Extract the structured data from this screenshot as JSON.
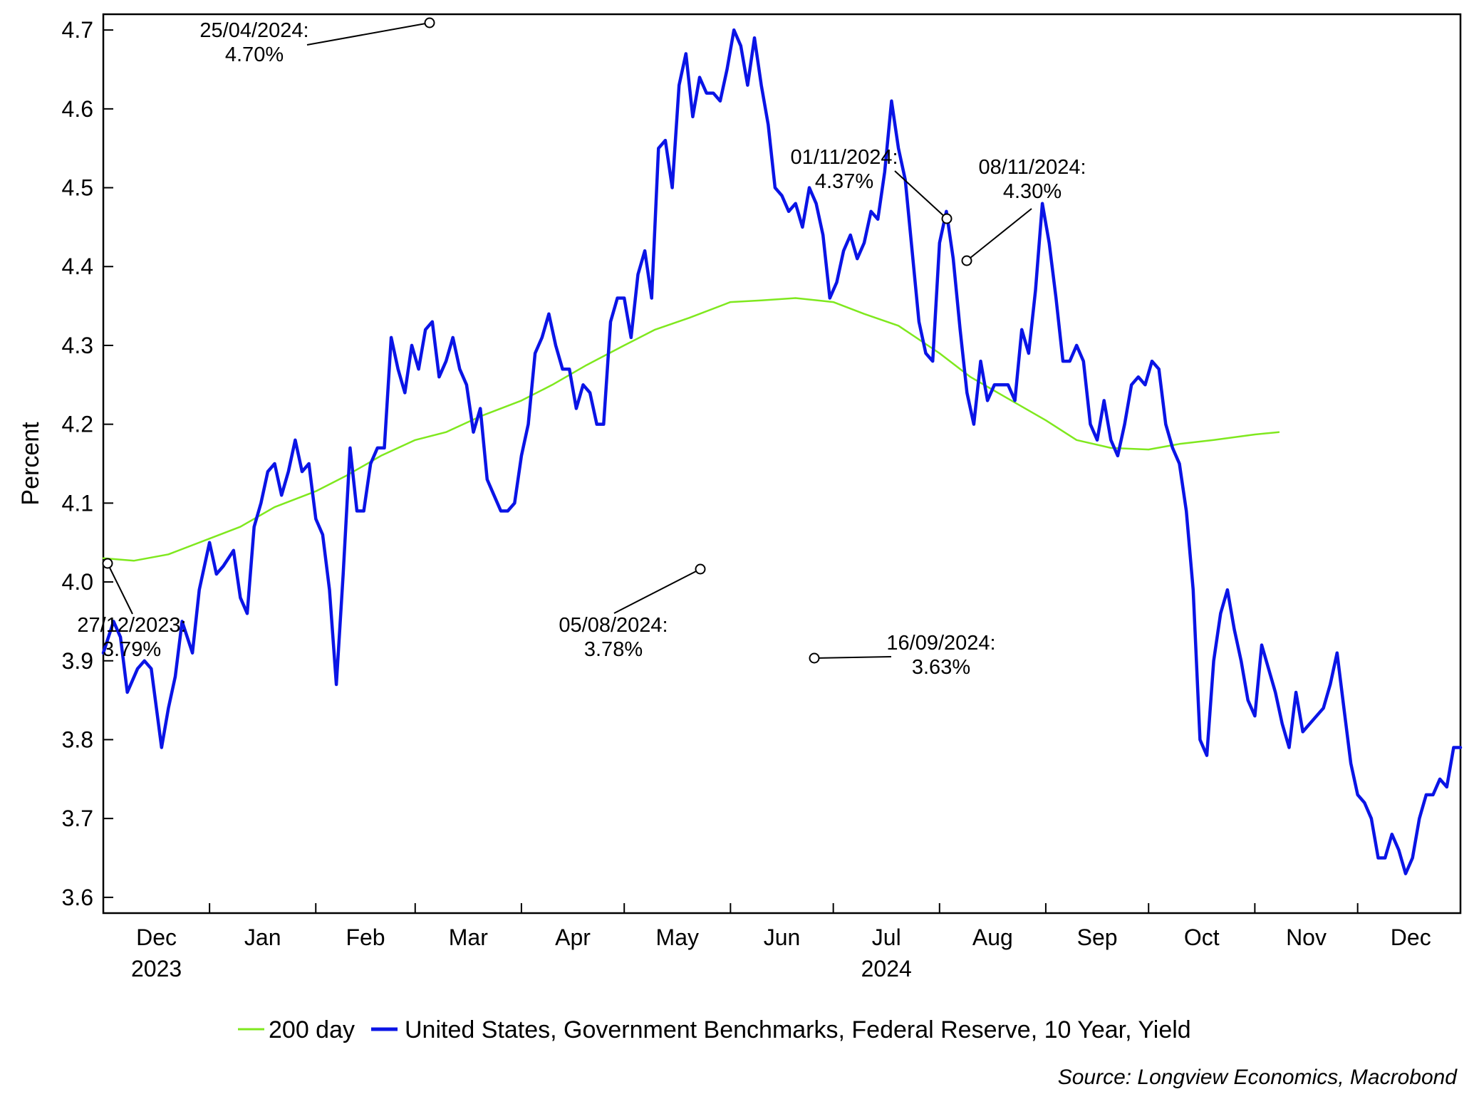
{
  "chart_data": {
    "type": "line",
    "ylabel": "Percent",
    "ylim": [
      3.58,
      4.72
    ],
    "yticks": [
      "3.6",
      "3.7",
      "3.8",
      "3.9",
      "4.0",
      "4.1",
      "4.2",
      "4.3",
      "4.4",
      "4.5",
      "4.6",
      "4.7"
    ],
    "xlim": [
      "2023-12-01",
      "2024-12-31"
    ],
    "months": [
      "Dec",
      "Jan",
      "Feb",
      "Mar",
      "Apr",
      "May",
      "Jun",
      "Jul",
      "Aug",
      "Sep",
      "Oct",
      "Nov",
      "Dec"
    ],
    "years": [
      "2023",
      "2024"
    ],
    "grid": false,
    "legend_position": "bottom",
    "series": [
      {
        "name": "200 day",
        "color": "#7FE81E",
        "points": [
          [
            "2023-12-01",
            4.03
          ],
          [
            "2023-12-10",
            4.027
          ],
          [
            "2023-12-20",
            4.035
          ],
          [
            "2024-01-01",
            4.055
          ],
          [
            "2024-01-10",
            4.07
          ],
          [
            "2024-01-20",
            4.095
          ],
          [
            "2024-02-01",
            4.115
          ],
          [
            "2024-02-10",
            4.135
          ],
          [
            "2024-02-20",
            4.16
          ],
          [
            "2024-03-01",
            4.18
          ],
          [
            "2024-03-10",
            4.19
          ],
          [
            "2024-03-20",
            4.21
          ],
          [
            "2024-04-01",
            4.23
          ],
          [
            "2024-04-10",
            4.25
          ],
          [
            "2024-04-20",
            4.275
          ],
          [
            "2024-05-01",
            4.3
          ],
          [
            "2024-05-10",
            4.32
          ],
          [
            "2024-05-20",
            4.335
          ],
          [
            "2024-06-01",
            4.355
          ],
          [
            "2024-06-10",
            4.357
          ],
          [
            "2024-06-20",
            4.36
          ],
          [
            "2024-07-01",
            4.355
          ],
          [
            "2024-07-10",
            4.34
          ],
          [
            "2024-07-20",
            4.325
          ],
          [
            "2024-08-01",
            4.29
          ],
          [
            "2024-08-10",
            4.26
          ],
          [
            "2024-08-20",
            4.235
          ],
          [
            "2024-09-01",
            4.205
          ],
          [
            "2024-09-10",
            4.18
          ],
          [
            "2024-09-20",
            4.17
          ],
          [
            "2024-10-01",
            4.168
          ],
          [
            "2024-10-10",
            4.175
          ],
          [
            "2024-10-20",
            4.18
          ],
          [
            "2024-11-01",
            4.187
          ],
          [
            "2024-11-08",
            4.19
          ]
        ]
      },
      {
        "name": "United States, Government Benchmarks, Federal Reserve, 10 Year, Yield",
        "color": "#0A14E6",
        "points": [
          [
            "2023-12-01",
            3.91
          ],
          [
            "2023-12-04",
            3.95
          ],
          [
            "2023-12-06",
            3.93
          ],
          [
            "2023-12-08",
            3.86
          ],
          [
            "2023-12-11",
            3.89
          ],
          [
            "2023-12-13",
            3.9
          ],
          [
            "2023-12-15",
            3.89
          ],
          [
            "2023-12-18",
            3.79
          ],
          [
            "2023-12-20",
            3.84
          ],
          [
            "2023-12-22",
            3.88
          ],
          [
            "2023-12-24",
            3.95
          ],
          [
            "2023-12-27",
            3.91
          ],
          [
            "2023-12-29",
            3.99
          ],
          [
            "2024-01-01",
            4.05
          ],
          [
            "2024-01-03",
            4.01
          ],
          [
            "2024-01-05",
            4.02
          ],
          [
            "2024-01-08",
            4.04
          ],
          [
            "2024-01-10",
            3.98
          ],
          [
            "2024-01-12",
            3.96
          ],
          [
            "2024-01-14",
            4.07
          ],
          [
            "2024-01-16",
            4.1
          ],
          [
            "2024-01-18",
            4.14
          ],
          [
            "2024-01-20",
            4.15
          ],
          [
            "2024-01-22",
            4.11
          ],
          [
            "2024-01-24",
            4.14
          ],
          [
            "2024-01-26",
            4.18
          ],
          [
            "2024-01-28",
            4.14
          ],
          [
            "2024-01-30",
            4.15
          ],
          [
            "2024-02-01",
            4.08
          ],
          [
            "2024-02-03",
            4.06
          ],
          [
            "2024-02-05",
            3.99
          ],
          [
            "2024-02-07",
            3.87
          ],
          [
            "2024-02-09",
            4.01
          ],
          [
            "2024-02-11",
            4.17
          ],
          [
            "2024-02-13",
            4.09
          ],
          [
            "2024-02-15",
            4.09
          ],
          [
            "2024-02-17",
            4.15
          ],
          [
            "2024-02-19",
            4.17
          ],
          [
            "2024-02-21",
            4.17
          ],
          [
            "2024-02-23",
            4.31
          ],
          [
            "2024-02-25",
            4.27
          ],
          [
            "2024-02-27",
            4.24
          ],
          [
            "2024-02-29",
            4.3
          ],
          [
            "2024-03-02",
            4.27
          ],
          [
            "2024-03-04",
            4.32
          ],
          [
            "2024-03-06",
            4.33
          ],
          [
            "2024-03-08",
            4.26
          ],
          [
            "2024-03-10",
            4.28
          ],
          [
            "2024-03-12",
            4.31
          ],
          [
            "2024-03-14",
            4.27
          ],
          [
            "2024-03-16",
            4.25
          ],
          [
            "2024-03-18",
            4.19
          ],
          [
            "2024-03-20",
            4.22
          ],
          [
            "2024-03-22",
            4.13
          ],
          [
            "2024-03-24",
            4.11
          ],
          [
            "2024-03-26",
            4.09
          ],
          [
            "2024-03-28",
            4.09
          ],
          [
            "2024-03-30",
            4.1
          ],
          [
            "2024-04-01",
            4.16
          ],
          [
            "2024-04-03",
            4.2
          ],
          [
            "2024-04-05",
            4.29
          ],
          [
            "2024-04-07",
            4.31
          ],
          [
            "2024-04-09",
            4.34
          ],
          [
            "2024-04-11",
            4.3
          ],
          [
            "2024-04-13",
            4.27
          ],
          [
            "2024-04-15",
            4.27
          ],
          [
            "2024-04-17",
            4.22
          ],
          [
            "2024-04-19",
            4.25
          ],
          [
            "2024-04-21",
            4.24
          ],
          [
            "2024-04-23",
            4.2
          ],
          [
            "2024-04-25",
            4.2
          ],
          [
            "2024-04-27",
            4.33
          ],
          [
            "2024-04-29",
            4.36
          ],
          [
            "2024-05-01",
            4.36
          ],
          [
            "2024-05-03",
            4.31
          ],
          [
            "2024-05-05",
            4.39
          ],
          [
            "2024-05-07",
            4.42
          ],
          [
            "2024-05-09",
            4.36
          ],
          [
            "2024-05-11",
            4.55
          ],
          [
            "2024-05-13",
            4.56
          ],
          [
            "2024-05-15",
            4.5
          ],
          [
            "2024-05-17",
            4.63
          ],
          [
            "2024-05-19",
            4.67
          ],
          [
            "2024-05-21",
            4.59
          ],
          [
            "2024-05-23",
            4.64
          ],
          [
            "2024-05-25",
            4.62
          ],
          [
            "2024-05-27",
            4.62
          ],
          [
            "2024-05-29",
            4.61
          ],
          [
            "2024-05-31",
            4.65
          ],
          [
            "2024-06-02",
            4.7
          ],
          [
            "2024-06-04",
            4.68
          ],
          [
            "2024-06-06",
            4.63
          ],
          [
            "2024-06-08",
            4.69
          ],
          [
            "2024-06-10",
            4.63
          ],
          [
            "2024-06-12",
            4.58
          ],
          [
            "2024-06-14",
            4.5
          ],
          [
            "2024-06-16",
            4.49
          ],
          [
            "2024-06-18",
            4.47
          ],
          [
            "2024-06-20",
            4.48
          ],
          [
            "2024-06-22",
            4.45
          ],
          [
            "2024-06-24",
            4.5
          ],
          [
            "2024-06-26",
            4.48
          ],
          [
            "2024-06-28",
            4.44
          ],
          [
            "2024-06-30",
            4.36
          ],
          [
            "2024-07-02",
            4.38
          ],
          [
            "2024-07-04",
            4.42
          ],
          [
            "2024-07-06",
            4.44
          ],
          [
            "2024-07-08",
            4.41
          ],
          [
            "2024-07-10",
            4.43
          ],
          [
            "2024-07-12",
            4.47
          ],
          [
            "2024-07-14",
            4.46
          ],
          [
            "2024-07-16",
            4.52
          ],
          [
            "2024-07-18",
            4.61
          ],
          [
            "2024-07-20",
            4.55
          ],
          [
            "2024-07-22",
            4.51
          ],
          [
            "2024-07-24",
            4.42
          ],
          [
            "2024-07-26",
            4.33
          ],
          [
            "2024-07-28",
            4.29
          ],
          [
            "2024-07-30",
            4.28
          ],
          [
            "2024-08-01",
            4.43
          ],
          [
            "2024-08-03",
            4.47
          ],
          [
            "2024-08-05",
            4.41
          ],
          [
            "2024-08-07",
            4.32
          ],
          [
            "2024-08-09",
            4.24
          ],
          [
            "2024-08-11",
            4.2
          ],
          [
            "2024-08-13",
            4.28
          ],
          [
            "2024-08-15",
            4.23
          ],
          [
            "2024-08-17",
            4.25
          ],
          [
            "2024-08-19",
            4.25
          ],
          [
            "2024-08-21",
            4.25
          ],
          [
            "2024-08-23",
            4.23
          ],
          [
            "2024-08-25",
            4.32
          ],
          [
            "2024-08-27",
            4.29
          ],
          [
            "2024-08-29",
            4.37
          ],
          [
            "2024-08-31",
            4.48
          ],
          [
            "2024-09-02",
            4.43
          ],
          [
            "2024-09-04",
            4.36
          ],
          [
            "2024-09-06",
            4.28
          ],
          [
            "2024-09-08",
            4.28
          ],
          [
            "2024-09-10",
            4.3
          ],
          [
            "2024-09-12",
            4.28
          ],
          [
            "2024-09-14",
            4.2
          ],
          [
            "2024-09-16",
            4.18
          ],
          [
            "2024-09-18",
            4.23
          ],
          [
            "2024-09-20",
            4.18
          ],
          [
            "2024-09-22",
            4.16
          ],
          [
            "2024-09-24",
            4.2
          ],
          [
            "2024-09-26",
            4.25
          ],
          [
            "2024-09-28",
            4.26
          ],
          [
            "2024-09-30",
            4.25
          ],
          [
            "2024-10-02",
            4.28
          ],
          [
            "2024-10-04",
            4.27
          ],
          [
            "2024-10-06",
            4.2
          ],
          [
            "2024-10-08",
            4.17
          ],
          [
            "2024-10-10",
            4.15
          ],
          [
            "2024-10-12",
            4.09
          ],
          [
            "2024-10-14",
            3.99
          ],
          [
            "2024-10-16",
            3.8
          ],
          [
            "2024-10-18",
            3.78
          ],
          [
            "2024-10-20",
            3.9
          ],
          [
            "2024-10-22",
            3.96
          ],
          [
            "2024-10-24",
            3.99
          ],
          [
            "2024-10-26",
            3.94
          ],
          [
            "2024-10-28",
            3.9
          ],
          [
            "2024-10-30",
            3.85
          ],
          [
            "2024-11-01",
            3.83
          ],
          [
            "2024-11-03",
            3.92
          ],
          [
            "2024-11-05",
            3.89
          ],
          [
            "2024-11-07",
            3.86
          ],
          [
            "2024-11-09",
            3.82
          ],
          [
            "2024-11-11",
            3.79
          ],
          [
            "2024-11-13",
            3.86
          ],
          [
            "2024-11-15",
            3.81
          ],
          [
            "2024-11-17",
            3.82
          ],
          [
            "2024-11-19",
            3.83
          ],
          [
            "2024-11-21",
            3.84
          ],
          [
            "2024-11-23",
            3.87
          ],
          [
            "2024-11-25",
            3.91
          ],
          [
            "2024-11-27",
            3.84
          ],
          [
            "2024-11-29",
            3.77
          ],
          [
            "2024-12-01",
            3.73
          ],
          [
            "2024-12-03",
            3.72
          ],
          [
            "2024-12-05",
            3.7
          ],
          [
            "2024-12-07",
            3.65
          ],
          [
            "2024-12-09",
            3.65
          ],
          [
            "2024-12-11",
            3.68
          ],
          [
            "2024-12-13",
            3.66
          ],
          [
            "2024-12-15",
            3.63
          ],
          [
            "2024-12-17",
            3.65
          ],
          [
            "2024-12-19",
            3.7
          ],
          [
            "2024-12-21",
            3.73
          ],
          [
            "2024-12-23",
            3.73
          ],
          [
            "2024-12-25",
            3.75
          ],
          [
            "2024-12-27",
            3.74
          ],
          [
            "2024-12-29",
            3.79
          ],
          [
            "2024-12-31",
            3.79
          ]
        ]
      }
    ],
    "annotations": [
      {
        "date": "27/12/2023:",
        "value": "3.79%"
      },
      {
        "date": "25/04/2024:",
        "value": "4.70%"
      },
      {
        "date": "05/08/2024:",
        "value": "3.78%"
      },
      {
        "date": "16/09/2024:",
        "value": "3.63%"
      },
      {
        "date": "01/11/2024:",
        "value": "4.37%"
      },
      {
        "date": "08/11/2024:",
        "value": "4.30%"
      }
    ]
  },
  "source": "Source: Longview Economics, Macrobond"
}
